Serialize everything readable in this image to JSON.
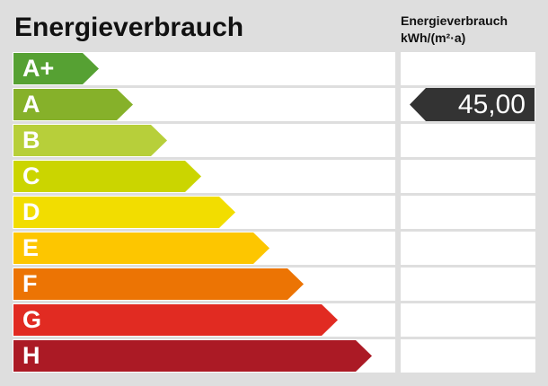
{
  "header": {
    "title": "Energieverbrauch",
    "unit_line1": "Energieverbrauch",
    "unit_line2": "kWh/(m²·a)"
  },
  "chart_data": {
    "type": "bar",
    "title": "Energieverbrauch",
    "categories": [
      "A+",
      "A",
      "B",
      "C",
      "D",
      "E",
      "F",
      "G",
      "H"
    ],
    "colors": [
      "#56a133",
      "#86b12a",
      "#b7cf3a",
      "#cbd500",
      "#f2dd00",
      "#fdc600",
      "#ec7404",
      "#e12b22",
      "#ab1a25"
    ],
    "values_label": "45,00",
    "marker_value": 45.0,
    "marker_class": "A",
    "unit": "kWh/(m²·a)"
  }
}
